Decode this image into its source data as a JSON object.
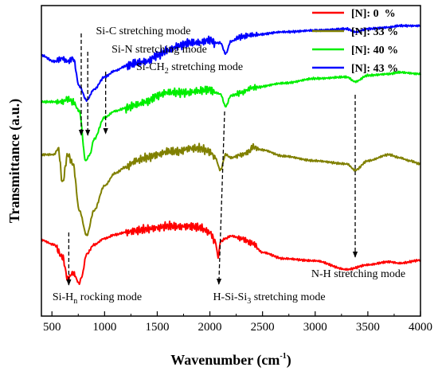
{
  "chart_data": {
    "type": "line",
    "title": "",
    "xlabel": "Wavenumber (cm",
    "xlabel_sup": "-1",
    "xlabel_end": ")",
    "ylabel": "Transmittance (a.u.)",
    "xlim": [
      400,
      4000
    ],
    "ylim": [
      0,
      1
    ],
    "y_ticks_shown": false,
    "x_ticks": [
      500,
      1000,
      1500,
      2000,
      2500,
      3000,
      3500,
      4000
    ],
    "grid": false,
    "legend_position": "top-right",
    "series": [
      {
        "name": "[N]: 0  %",
        "color": "#ff0000",
        "x": [
          400,
          520,
          600,
          650,
          700,
          760,
          780,
          830,
          900,
          1000,
          1100,
          1200,
          1300,
          1400,
          1500,
          1600,
          1700,
          1800,
          1900,
          2000,
          2050,
          2080,
          2100,
          2150,
          2200,
          2300,
          2400,
          2500,
          2700,
          3000,
          3300,
          3500,
          3700,
          3800,
          4000
        ],
        "y": [
          0.245,
          0.23,
          0.19,
          0.12,
          0.14,
          0.105,
          0.125,
          0.2,
          0.23,
          0.25,
          0.262,
          0.27,
          0.275,
          0.28,
          0.285,
          0.29,
          0.288,
          0.29,
          0.285,
          0.27,
          0.24,
          0.19,
          0.24,
          0.25,
          0.258,
          0.25,
          0.235,
          0.205,
          0.185,
          0.178,
          0.15,
          0.165,
          0.175,
          0.17,
          0.18
        ]
      },
      {
        "name": "[N]: 33 %",
        "color": "#808000",
        "x": [
          400,
          520,
          560,
          600,
          650,
          700,
          760,
          830,
          900,
          1000,
          1100,
          1200,
          1300,
          1400,
          1500,
          1600,
          1700,
          1800,
          1900,
          2000,
          2050,
          2100,
          2150,
          2200,
          2300,
          2380,
          2400,
          2500,
          2700,
          3000,
          3300,
          3380,
          3500,
          3700,
          3800,
          3900,
          4000
        ],
        "y": [
          0.52,
          0.52,
          0.54,
          0.43,
          0.52,
          0.49,
          0.34,
          0.26,
          0.34,
          0.42,
          0.46,
          0.48,
          0.5,
          0.51,
          0.52,
          0.53,
          0.53,
          0.54,
          0.54,
          0.53,
          0.51,
          0.47,
          0.52,
          0.51,
          0.52,
          0.53,
          0.545,
          0.535,
          0.515,
          0.5,
          0.49,
          0.47,
          0.5,
          0.52,
          0.51,
          0.5,
          0.49
        ]
      },
      {
        "name": "[N]: 40 %",
        "color": "#00ee00",
        "x": [
          400,
          520,
          600,
          650,
          700,
          760,
          820,
          860,
          900,
          1000,
          1100,
          1200,
          1300,
          1400,
          1500,
          1600,
          1700,
          1800,
          1900,
          2000,
          2050,
          2100,
          2150,
          2200,
          2300,
          2400,
          2700,
          3000,
          3300,
          3380,
          3500,
          3700,
          3800,
          4000
        ],
        "y": [
          0.69,
          0.69,
          0.69,
          0.7,
          0.69,
          0.66,
          0.5,
          0.52,
          0.57,
          0.64,
          0.66,
          0.67,
          0.68,
          0.69,
          0.71,
          0.72,
          0.72,
          0.72,
          0.725,
          0.73,
          0.72,
          0.715,
          0.675,
          0.71,
          0.72,
          0.735,
          0.75,
          0.765,
          0.77,
          0.755,
          0.775,
          0.78,
          0.785,
          0.78
        ]
      },
      {
        "name": "[N]: 43 %",
        "color": "#0000ff",
        "x": [
          400,
          520,
          600,
          650,
          700,
          760,
          830,
          900,
          1000,
          1100,
          1200,
          1300,
          1400,
          1500,
          1600,
          1700,
          1800,
          1900,
          2000,
          2050,
          2100,
          2150,
          2200,
          2300,
          2400,
          2700,
          3000,
          3300,
          3380,
          3500,
          3700,
          3800,
          4000
        ],
        "y": [
          0.84,
          0.82,
          0.83,
          0.82,
          0.83,
          0.74,
          0.695,
          0.73,
          0.77,
          0.79,
          0.805,
          0.815,
          0.82,
          0.84,
          0.855,
          0.87,
          0.88,
          0.88,
          0.89,
          0.88,
          0.88,
          0.845,
          0.885,
          0.9,
          0.905,
          0.915,
          0.92,
          0.925,
          0.915,
          0.925,
          0.93,
          0.935,
          0.935
        ]
      }
    ],
    "annotations": [
      {
        "text": "Si-C stretching mode",
        "x": 780
      },
      {
        "text": "Si-N stretching mode",
        "x": 840
      },
      {
        "text": "Si-CH",
        "sub": "2",
        "text_end": " stretching mode",
        "x": 1010
      },
      {
        "text": "Si-H",
        "sub": "n",
        "text_end": " rocking mode",
        "x": 660
      },
      {
        "text": "H-Si-Si",
        "sub": "3",
        "text_end": " stretching mode",
        "x": 2080
      },
      {
        "text": "N-H stretching mode",
        "x": 3380
      }
    ]
  }
}
